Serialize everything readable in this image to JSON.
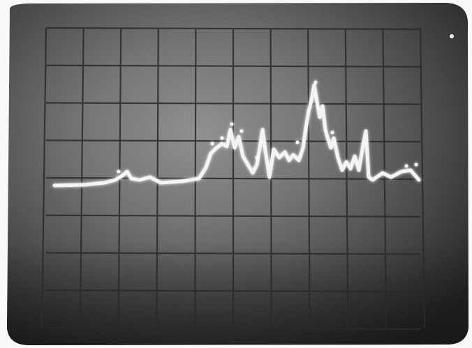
{
  "photo": {
    "subject": "oscilloscope-screen",
    "colors": {
      "screen_light": "#8a8a8a",
      "screen_mid": "#5a5a5a",
      "screen_dark": "#1c1c1c",
      "graticule": "#2e2e2e",
      "trace": "#f4f4f4",
      "border": "#ffffff"
    },
    "graticule": {
      "columns": 10,
      "rows": 8
    }
  }
}
